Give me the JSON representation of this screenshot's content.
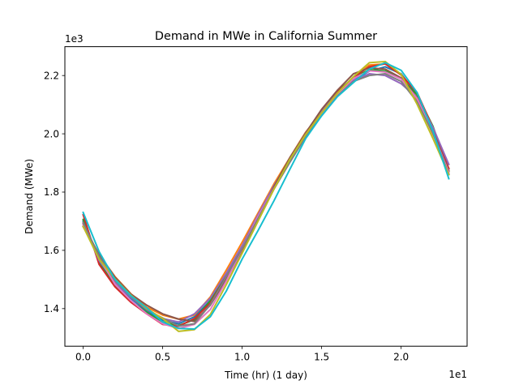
{
  "chart_data": {
    "type": "line",
    "title": "Demand in MWe in California Summer",
    "xlabel": "Time (hr) (1 day)",
    "ylabel": "Demand (MWe)",
    "x_offset_text": "1e1",
    "y_offset_text": "1e3",
    "xlim": [
      -1.15,
      24.15
    ],
    "ylim": [
      1271,
      2299
    ],
    "xticks": [
      0,
      5,
      10,
      15,
      20
    ],
    "xtick_labels": [
      "0.0",
      "0.5",
      "1.0",
      "1.5",
      "2.0"
    ],
    "yticks": [
      1400,
      1600,
      1800,
      2000,
      2200
    ],
    "ytick_labels": [
      "1.4",
      "1.6",
      "1.8",
      "2.0",
      "2.2"
    ],
    "grid": false,
    "legend": "none",
    "x": [
      0,
      1,
      2,
      3,
      4,
      5,
      6,
      7,
      8,
      9,
      10,
      11,
      12,
      13,
      14,
      15,
      16,
      17,
      18,
      19,
      20,
      21,
      22,
      23
    ],
    "series": [
      {
        "color": "#1f77b4",
        "values": [
          1700,
          1572,
          1490,
          1435,
          1392,
          1360,
          1348,
          1372,
          1428,
          1515,
          1612,
          1712,
          1815,
          1912,
          1998,
          2072,
          2134,
          2183,
          2215,
          2230,
          2206,
          2134,
          2016,
          1862
        ]
      },
      {
        "color": "#ff7f0e",
        "values": [
          1690,
          1585,
          1510,
          1451,
          1405,
          1378,
          1364,
          1378,
          1440,
          1532,
          1628,
          1728,
          1828,
          1918,
          2006,
          2074,
          2140,
          2192,
          2236,
          2240,
          2202,
          2118,
          1998,
          1882
        ]
      },
      {
        "color": "#2ca02c",
        "values": [
          1706,
          1560,
          1480,
          1426,
          1387,
          1354,
          1342,
          1362,
          1427,
          1515,
          1612,
          1718,
          1818,
          1916,
          2002,
          2083,
          2146,
          2193,
          2220,
          2216,
          2190,
          2134,
          2026,
          1872
        ]
      },
      {
        "color": "#d62728",
        "values": [
          1722,
          1552,
          1475,
          1422,
          1382,
          1346,
          1339,
          1366,
          1419,
          1510,
          1602,
          1710,
          1812,
          1906,
          1996,
          2072,
          2143,
          2194,
          2230,
          2240,
          2202,
          2142,
          2021,
          1880
        ]
      },
      {
        "color": "#9467bd",
        "values": [
          1692,
          1565,
          1492,
          1439,
          1397,
          1366,
          1354,
          1382,
          1436,
          1521,
          1616,
          1722,
          1822,
          1912,
          2004,
          2077,
          2140,
          2183,
          2206,
          2200,
          2172,
          2124,
          2022,
          1895
        ]
      },
      {
        "color": "#8c564b",
        "values": [
          1681,
          1587,
          1508,
          1450,
          1412,
          1382,
          1364,
          1356,
          1412,
          1500,
          1592,
          1702,
          1818,
          1918,
          2003,
          2084,
          2150,
          2206,
          2226,
          2222,
          2192,
          2124,
          2010,
          1874
        ]
      },
      {
        "color": "#e377c2",
        "values": [
          1684,
          1575,
          1484,
          1428,
          1382,
          1348,
          1332,
          1346,
          1397,
          1494,
          1606,
          1716,
          1812,
          1904,
          1996,
          2068,
          2136,
          2190,
          2216,
          2212,
          2188,
          2122,
          2002,
          1868
        ]
      },
      {
        "color": "#7f7f7f",
        "values": [
          1696,
          1580,
          1496,
          1442,
          1396,
          1368,
          1340,
          1348,
          1414,
          1510,
          1606,
          1709,
          1810,
          1902,
          1990,
          2062,
          2130,
          2180,
          2200,
          2206,
          2180,
          2110,
          2002,
          1860
        ]
      },
      {
        "color": "#bcbd22",
        "values": [
          1682,
          1570,
          1502,
          1446,
          1400,
          1366,
          1322,
          1328,
          1380,
          1482,
          1590,
          1700,
          1810,
          1912,
          1998,
          2072,
          2140,
          2196,
          2244,
          2248,
          2204,
          2102,
          1984,
          1860
        ]
      },
      {
        "color": "#17becf",
        "values": [
          1730,
          1596,
          1500,
          1444,
          1403,
          1354,
          1332,
          1330,
          1372,
          1460,
          1570,
          1668,
          1770,
          1878,
          1984,
          2062,
          2128,
          2176,
          2222,
          2244,
          2218,
          2142,
          2010,
          1846
        ]
      }
    ]
  }
}
